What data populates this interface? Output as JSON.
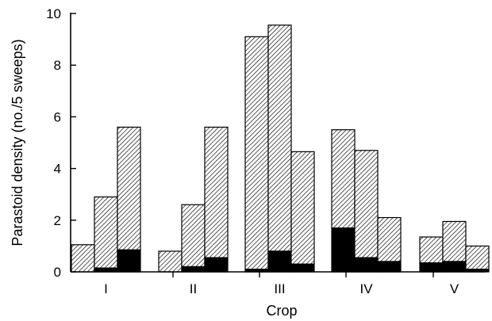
{
  "chart_data": {
    "type": "bar",
    "stacked": true,
    "title": "",
    "xlabel": "Crop",
    "ylabel": "Parastoid density (no./5 sweeps)",
    "ylim": [
      0,
      10
    ],
    "yticks": [
      0,
      2,
      4,
      6,
      8,
      10
    ],
    "grid": false,
    "categories": [
      "I",
      "II",
      "III",
      "IV",
      "V"
    ],
    "bars_per_category": 3,
    "series": [
      {
        "style": "solid black (bottom segment)",
        "color": "#000000",
        "values": [
          [
            0.0,
            0.15,
            0.85
          ],
          [
            0.0,
            0.2,
            0.55
          ],
          [
            0.1,
            0.8,
            0.3
          ],
          [
            1.7,
            0.55,
            0.4
          ],
          [
            0.35,
            0.4,
            0.1
          ]
        ]
      },
      {
        "style": "diagonal hatch (upper segment)",
        "color": "#000000",
        "values": [
          [
            1.05,
            2.75,
            4.75
          ],
          [
            0.8,
            2.4,
            5.05
          ],
          [
            9.0,
            8.75,
            4.35
          ],
          [
            3.8,
            4.15,
            1.7
          ],
          [
            1.0,
            1.55,
            0.9
          ]
        ]
      }
    ],
    "totals": [
      [
        1.05,
        2.9,
        5.6
      ],
      [
        0.8,
        2.6,
        5.6
      ],
      [
        9.1,
        9.55,
        4.65
      ],
      [
        5.5,
        4.7,
        2.1
      ],
      [
        1.35,
        1.95,
        1.0
      ]
    ]
  }
}
